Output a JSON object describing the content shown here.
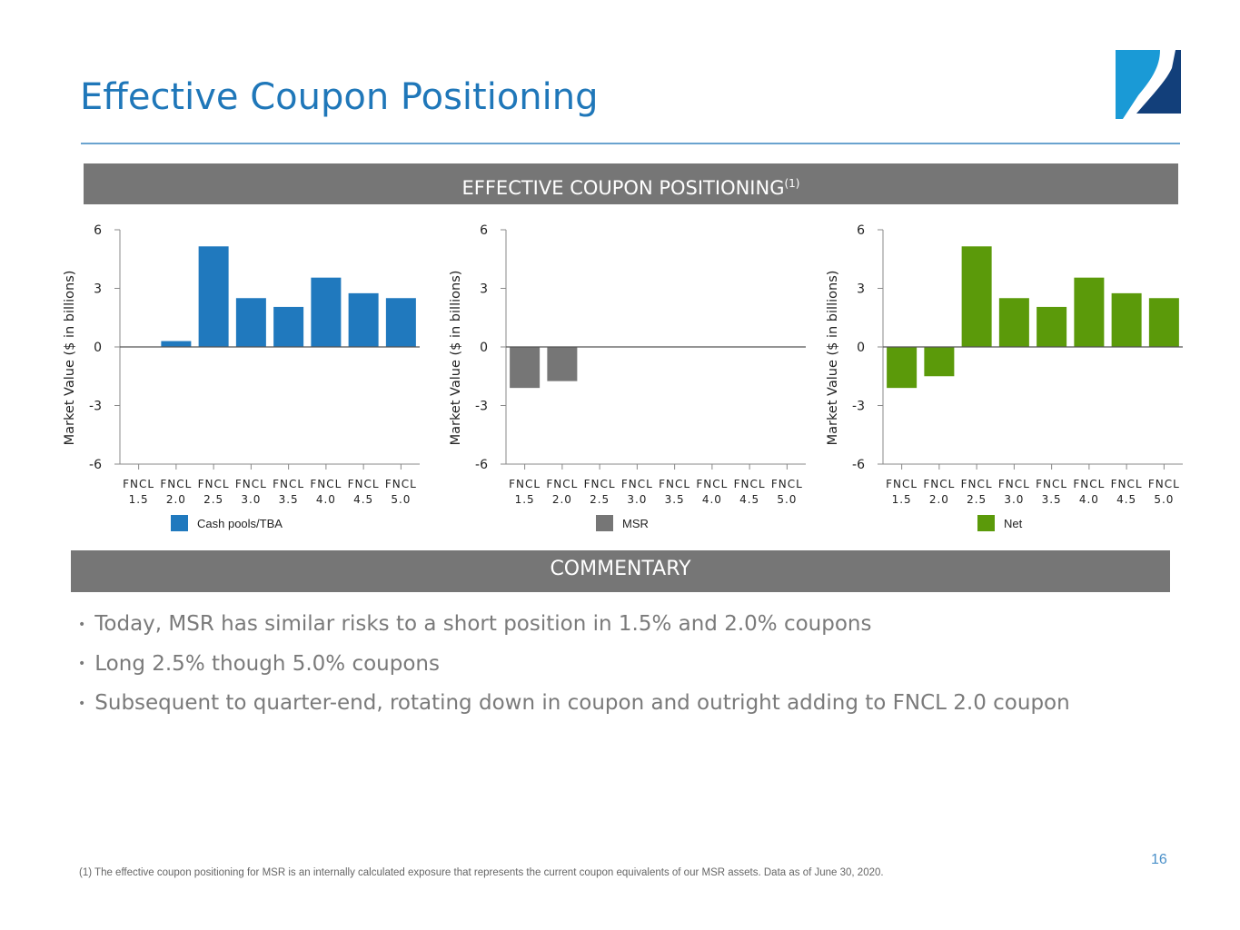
{
  "header": {
    "title": "Effective Coupon Positioning"
  },
  "banner": {
    "label": "EFFECTIVE COUPON POSITIONING",
    "superscript": "(1)"
  },
  "colors": {
    "cash": "#2079be",
    "msr": "#767676",
    "net": "#5b9a0a",
    "title": "#1f77b9"
  },
  "chart_data": [
    {
      "type": "bar",
      "series_name": "Cash pools/TBA",
      "categories": [
        [
          "FNCL",
          "1.5"
        ],
        [
          "FNCL",
          "2.0"
        ],
        [
          "FNCL",
          "2.5"
        ],
        [
          "FNCL",
          "3.0"
        ],
        [
          "FNCL",
          "3.5"
        ],
        [
          "FNCL",
          "4.0"
        ],
        [
          "FNCL",
          "4.5"
        ],
        [
          "FNCL",
          "5.0"
        ]
      ],
      "values": [
        0,
        0.3,
        5.15,
        2.5,
        2.05,
        3.55,
        2.75,
        2.5
      ],
      "ylabel": "Market Value ($ in billions)",
      "yticks": [
        "6",
        "3",
        "0",
        "-3",
        "-6"
      ],
      "ylim": [
        -6,
        6
      ],
      "legend": "bottom"
    },
    {
      "type": "bar",
      "series_name": "MSR",
      "categories": [
        [
          "FNCL",
          "1.5"
        ],
        [
          "FNCL",
          "2.0"
        ],
        [
          "FNCL",
          "2.5"
        ],
        [
          "FNCL",
          "3.0"
        ],
        [
          "FNCL",
          "3.5"
        ],
        [
          "FNCL",
          "4.0"
        ],
        [
          "FNCL",
          "4.5"
        ],
        [
          "FNCL",
          "5.0"
        ]
      ],
      "values": [
        -2.1,
        -1.75,
        0,
        0,
        0,
        0,
        0,
        0
      ],
      "ylabel": "Market Value ($ in billions)",
      "yticks": [
        "6",
        "3",
        "0",
        "-3",
        "-6"
      ],
      "ylim": [
        -6,
        6
      ],
      "legend": "bottom"
    },
    {
      "type": "bar",
      "series_name": "Net",
      "categories": [
        [
          "FNCL",
          "1.5"
        ],
        [
          "FNCL",
          "2.0"
        ],
        [
          "FNCL",
          "2.5"
        ],
        [
          "FNCL",
          "3.0"
        ],
        [
          "FNCL",
          "3.5"
        ],
        [
          "FNCL",
          "4.0"
        ],
        [
          "FNCL",
          "4.5"
        ],
        [
          "FNCL",
          "5.0"
        ]
      ],
      "values": [
        -2.1,
        -1.5,
        5.15,
        2.5,
        2.05,
        3.55,
        2.75,
        2.5
      ],
      "ylabel": "Market Value ($ in billions)",
      "yticks": [
        "6",
        "3",
        "0",
        "-3",
        "-6"
      ],
      "ylim": [
        -6,
        6
      ],
      "legend": "bottom"
    }
  ],
  "commentary": {
    "heading": "COMMENTARY",
    "bullet_char": "•",
    "items": [
      "Today, MSR has similar risks to a short position in 1.5% and 2.0% coupons",
      "Long 2.5% though 5.0% coupons",
      "Subsequent to quarter-end, rotating down in coupon and outright adding to FNCL 2.0 coupon"
    ]
  },
  "page_number": "16",
  "footnote": "(1)  The effective coupon positioning for MSR is an internally calculated exposure that represents the current coupon equivalents of our MSR assets. Data as of June 30, 2020."
}
